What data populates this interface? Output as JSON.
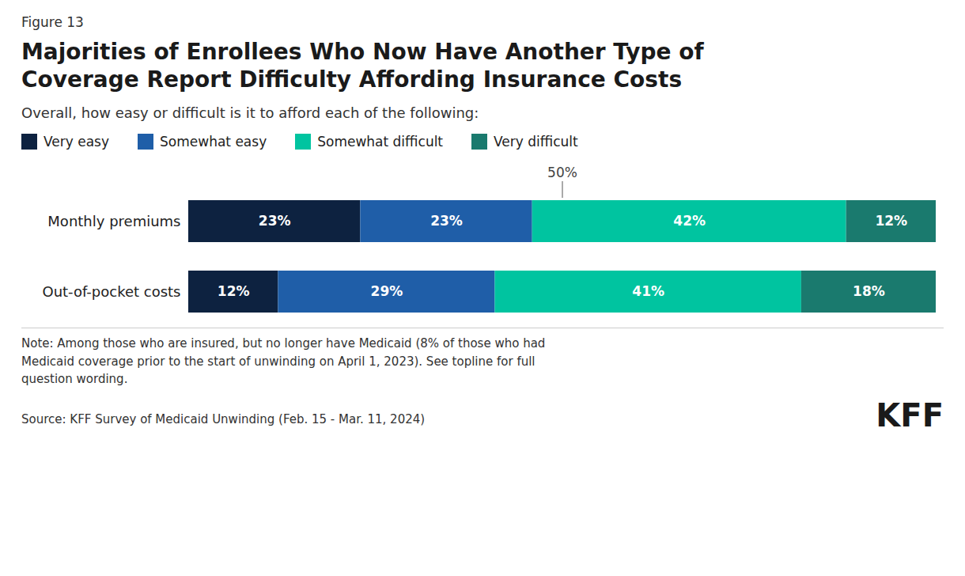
{
  "chart_data": {
    "type": "bar",
    "orientation": "horizontal",
    "stacked": true,
    "data_labels": true,
    "tick_labels": "y",
    "grid": false,
    "legend": "top-left",
    "figure_label": "Figure 13",
    "title": "Majorities of Enrollees Who Now Have Another Type of\nCoverage Report Difficulty Affording Insurance Costs",
    "subtitle": "Overall, how easy or difficult is it to afford each of the following:",
    "categories": [
      "Monthly premiums",
      "Out-of-pocket costs"
    ],
    "series": [
      {
        "name": "Very easy",
        "color": "#0d2240",
        "values": [
          23,
          12
        ],
        "value_labels": [
          "23%",
          "12%"
        ]
      },
      {
        "name": "Somewhat easy",
        "color": "#1f5ea8",
        "values": [
          23,
          29
        ],
        "value_labels": [
          "23%",
          "29%"
        ]
      },
      {
        "name": "Somewhat difficult",
        "color": "#00c4a0",
        "values": [
          42,
          41
        ],
        "value_labels": [
          "42%",
          "41%"
        ]
      },
      {
        "name": "Very difficult",
        "color": "#1a7a6e",
        "values": [
          12,
          18
        ],
        "value_labels": [
          "12%",
          "18%"
        ]
      }
    ],
    "xlim": [
      0,
      100
    ],
    "annotations": [
      {
        "x": 50,
        "label": "50%"
      }
    ],
    "note": "Note: Among those who are insured, but no longer have Medicaid (8% of those who had\nMedicaid coverage prior to the start of unwinding on April 1, 2023). See topline for full\nquestion wording.",
    "source": "Source: KFF Survey of Medicaid Unwinding (Feb. 15 - Mar. 11, 2024)",
    "credit": "KFF"
  }
}
